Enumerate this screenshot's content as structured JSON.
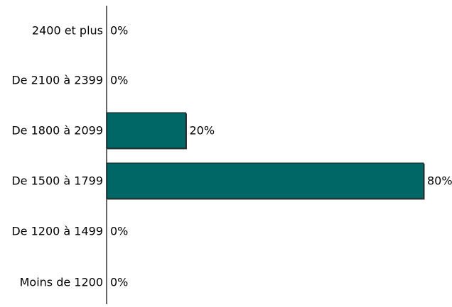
{
  "chart_data": {
    "type": "bar",
    "orientation": "horizontal",
    "categories": [
      "2400 et plus",
      "De 2100 à 2399",
      "De 1800 à 2099",
      "De 1500 à 1799",
      "De 1200 à 1499",
      "Moins de 1200"
    ],
    "values": [
      0,
      0,
      20,
      80,
      0,
      0
    ],
    "value_labels": [
      "0%",
      "0%",
      "20%",
      "80%",
      "0%",
      "0%"
    ],
    "unit": "%",
    "xlim": [
      0,
      80
    ],
    "grid": false,
    "legend": "none",
    "colors": {
      "bar_fill": "#006666",
      "bar_stroke": "#1a2a2a",
      "axis": "#000000",
      "text": "#000000"
    }
  }
}
